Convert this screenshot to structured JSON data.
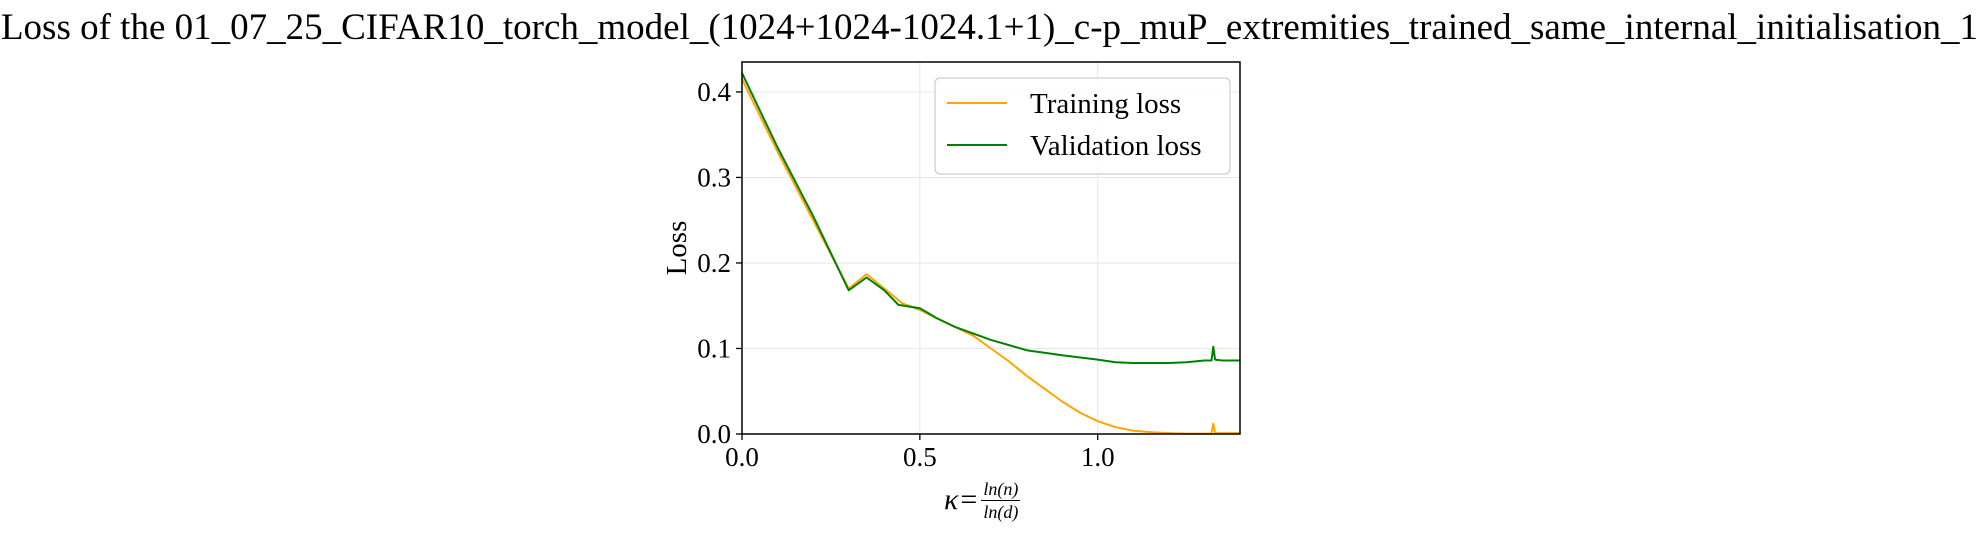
{
  "chart_data": {
    "type": "line",
    "title": "Loss of the 01_07_25_CIFAR10_torch_model_(1024+1024-1024.1+1)_c-p_muP_extremities_trained_same_internal_initialisation_1",
    "xlabel": {
      "symbol": "κ",
      "equals": "=",
      "numerator": "ln(n)",
      "denominator": "ln(d)"
    },
    "ylabel": "Loss",
    "xlim": [
      0.0,
      1.4
    ],
    "ylim": [
      0.0,
      0.435
    ],
    "xticks": [
      0.0,
      0.5,
      1.0
    ],
    "xtick_labels": [
      "0.0",
      "0.5",
      "1.0"
    ],
    "yticks": [
      0.0,
      0.1,
      0.2,
      0.3,
      0.4
    ],
    "ytick_labels": [
      "0.0",
      "0.1",
      "0.2",
      "0.3",
      "0.4"
    ],
    "grid": true,
    "legend_position": "top-right",
    "series": [
      {
        "name": "Training loss",
        "color": "#ffa500",
        "x": [
          0.0,
          0.1,
          0.2,
          0.3,
          0.35,
          0.4,
          0.45,
          0.5,
          0.55,
          0.6,
          0.65,
          0.7,
          0.75,
          0.8,
          0.85,
          0.9,
          0.95,
          1.0,
          1.05,
          1.1,
          1.15,
          1.2,
          1.25,
          1.3,
          1.32,
          1.325,
          1.33,
          1.35,
          1.4
        ],
        "y": [
          0.415,
          0.33,
          0.25,
          0.17,
          0.187,
          0.17,
          0.153,
          0.145,
          0.135,
          0.125,
          0.115,
          0.1,
          0.085,
          0.068,
          0.053,
          0.038,
          0.025,
          0.015,
          0.008,
          0.004,
          0.002,
          0.001,
          0.0005,
          0.0005,
          0.0005,
          0.012,
          0.001,
          0.001,
          0.001
        ]
      },
      {
        "name": "Validation loss",
        "color": "#008000",
        "x": [
          0.0,
          0.1,
          0.2,
          0.3,
          0.35,
          0.4,
          0.44,
          0.5,
          0.55,
          0.6,
          0.7,
          0.8,
          0.9,
          1.0,
          1.05,
          1.1,
          1.2,
          1.25,
          1.3,
          1.32,
          1.325,
          1.33,
          1.35,
          1.4
        ],
        "y": [
          0.422,
          0.335,
          0.255,
          0.168,
          0.183,
          0.168,
          0.151,
          0.147,
          0.135,
          0.125,
          0.11,
          0.098,
          0.092,
          0.087,
          0.084,
          0.083,
          0.083,
          0.084,
          0.086,
          0.086,
          0.102,
          0.087,
          0.086,
          0.086
        ]
      }
    ]
  }
}
